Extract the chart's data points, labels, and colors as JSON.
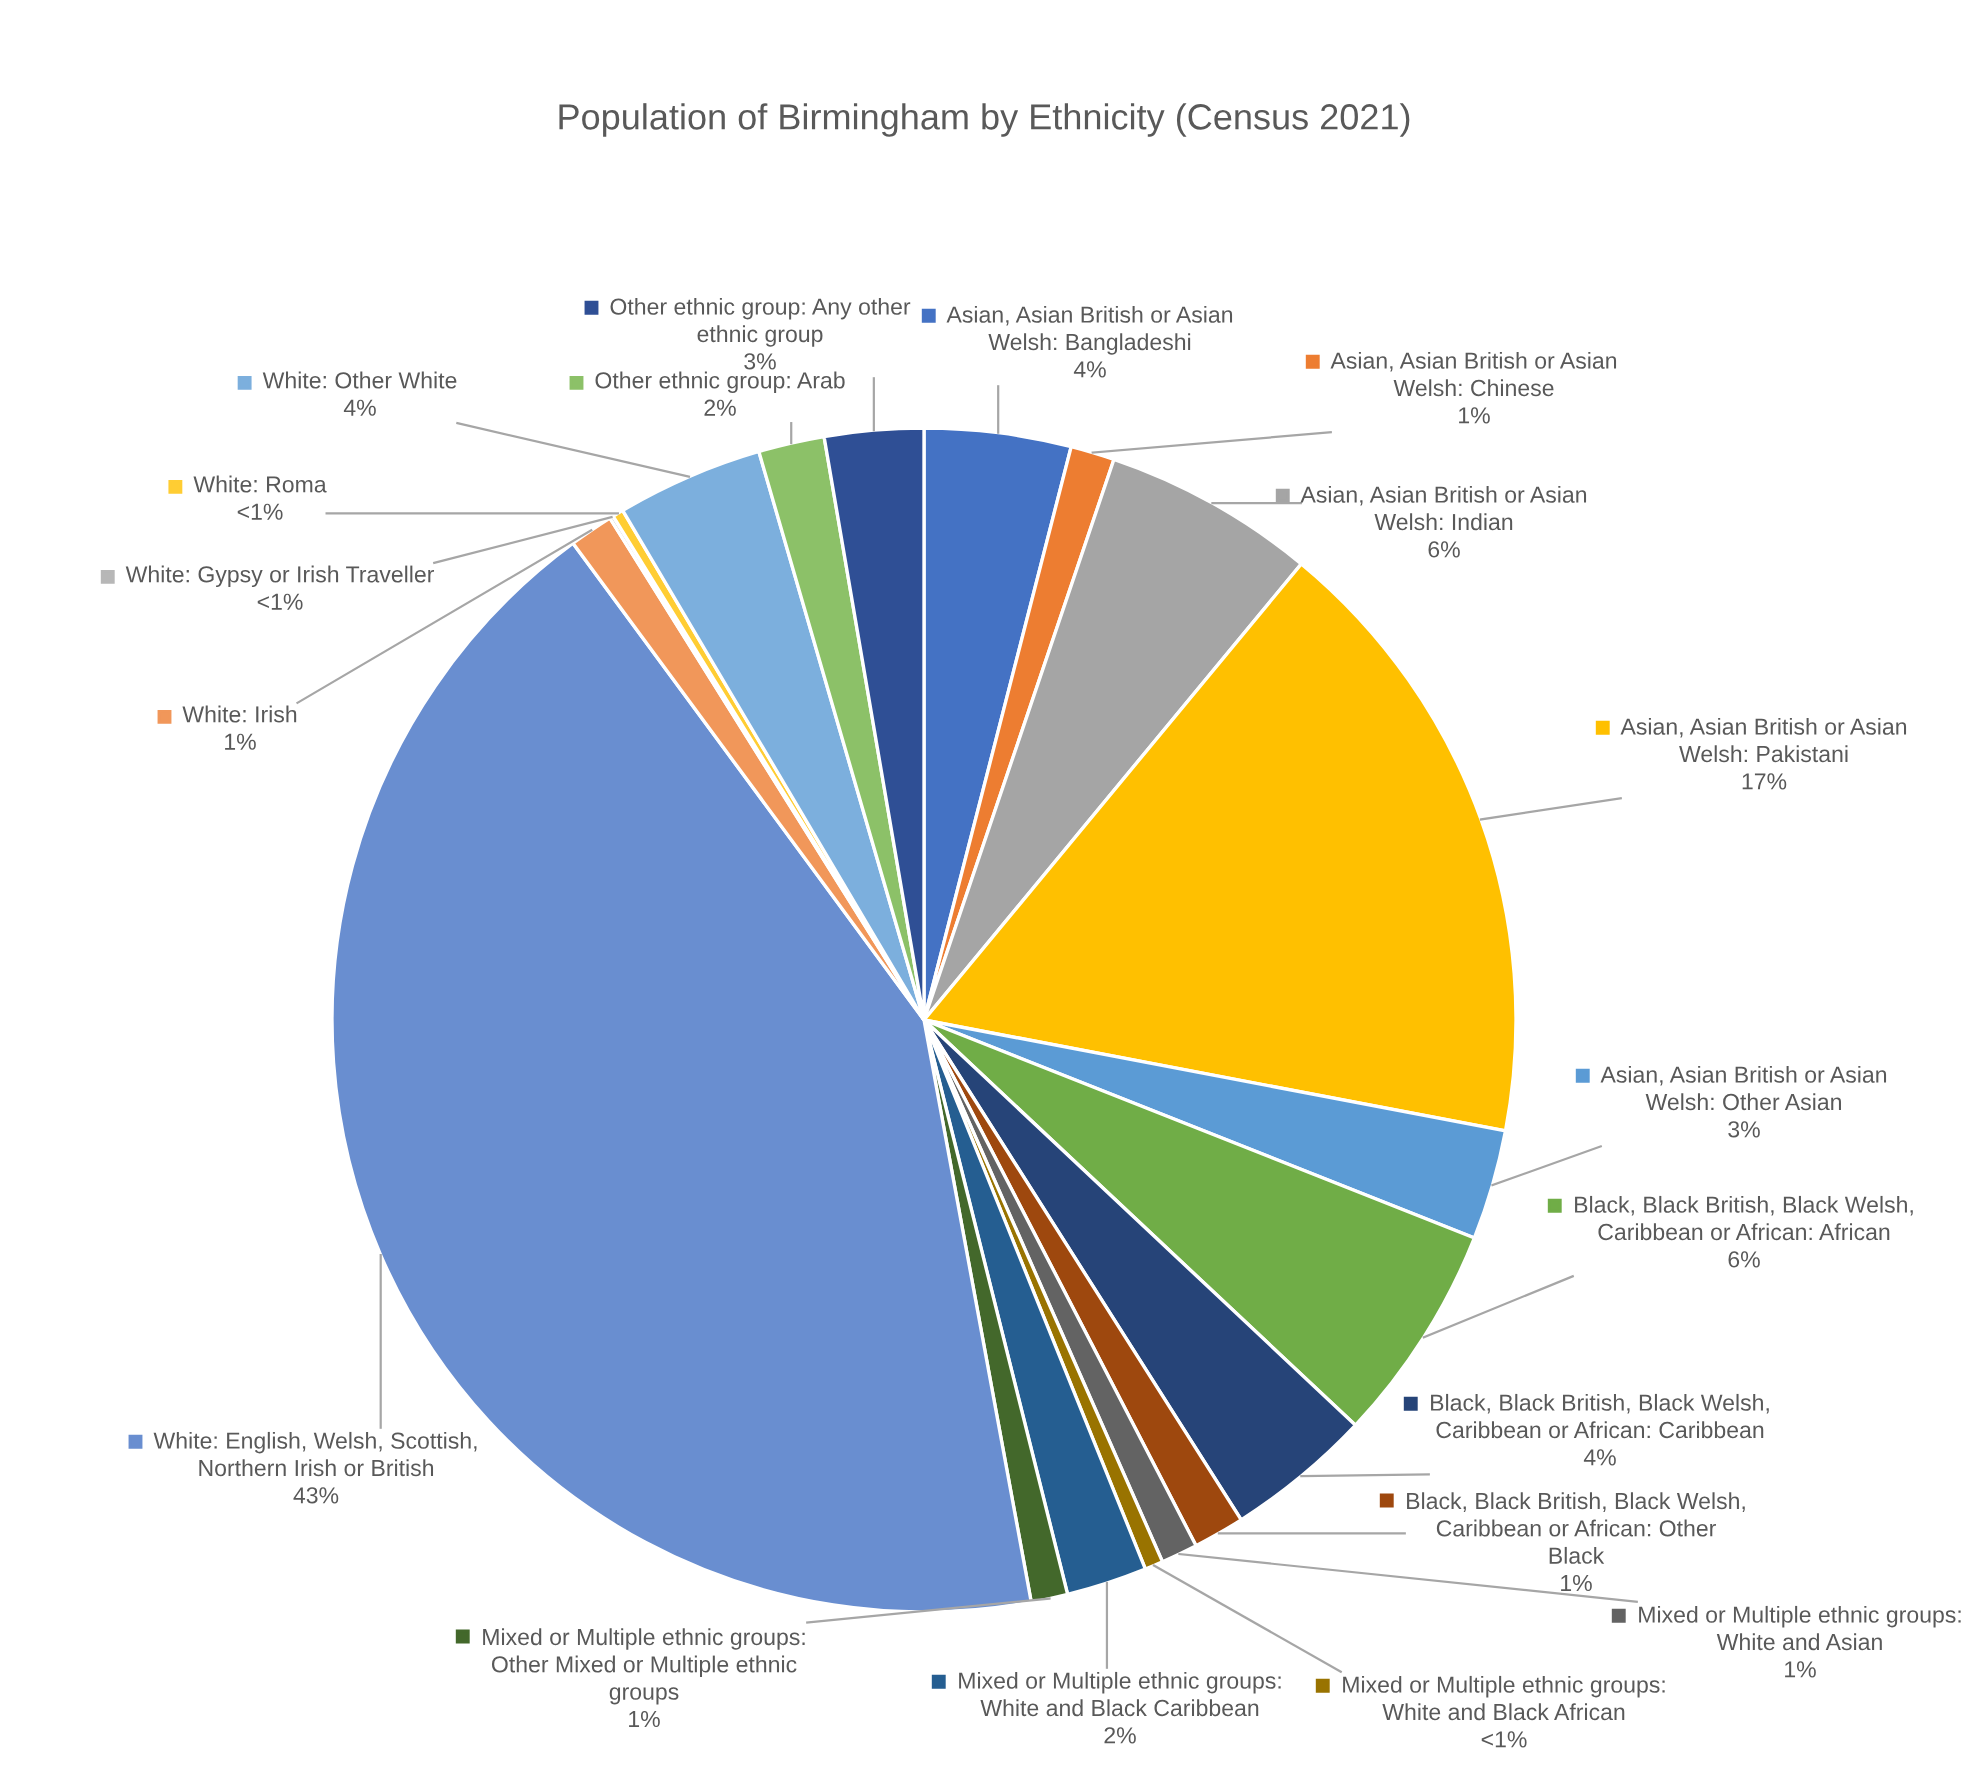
{
  "chart_data": {
    "type": "pie",
    "title": "Population of Birmingham by Ethnicity (Census 2021)",
    "categories": [
      "Asian, Asian British or Asian\nWelsh: Bangladeshi",
      "Asian, Asian British or Asian\nWelsh: Chinese",
      "Asian, Asian British or Asian\nWelsh: Indian",
      "Asian, Asian British or Asian\nWelsh: Pakistani",
      "Asian, Asian British or Asian\nWelsh: Other Asian",
      "Black, Black British, Black Welsh,\nCaribbean or African: African",
      "Black, Black British, Black Welsh,\nCaribbean or African: Caribbean",
      "Black, Black British, Black Welsh,\nCaribbean or African: Other\nBlack",
      "Mixed or Multiple ethnic groups:\nWhite and Asian",
      "Mixed or Multiple ethnic groups:\nWhite and Black African",
      "Mixed or Multiple ethnic groups:\nWhite and Black Caribbean",
      "Mixed or Multiple ethnic groups:\nOther Mixed or Multiple ethnic\ngroups",
      "White: English, Welsh, Scottish,\nNorthern Irish or British",
      "White: Irish",
      "White: Gypsy or Irish Traveller",
      "White: Roma",
      "White: Other White",
      "Other ethnic group: Arab",
      "Other ethnic group: Any other\nethnic group"
    ],
    "values": [
      4.0,
      1.2,
      5.8,
      17.0,
      3.0,
      6.0,
      4.0,
      1.4,
      1.0,
      0.5,
      2.2,
      1.0,
      42.8,
      1.2,
      0.1,
      0.3,
      4.0,
      1.8,
      2.7
    ],
    "value_labels": [
      "4%",
      "1%",
      "6%",
      "17%",
      "3%",
      "6%",
      "4%",
      "1%",
      "1%",
      "<1%",
      "2%",
      "1%",
      "43%",
      "1%",
      "<1%",
      "<1%",
      "4%",
      "2%",
      "3%"
    ],
    "colors": [
      "#4472c4",
      "#ed7d31",
      "#a5a5a5",
      "#ffc000",
      "#5b9bd5",
      "#70ad47",
      "#264478",
      "#9e480e",
      "#636363",
      "#997300",
      "#255e91",
      "#43682b",
      "#698ed0",
      "#f1975a",
      "#b7b7b7",
      "#ffcd33",
      "#7cafdd",
      "#8cc168",
      "#2f4f95"
    ],
    "legend": "right"
  }
}
